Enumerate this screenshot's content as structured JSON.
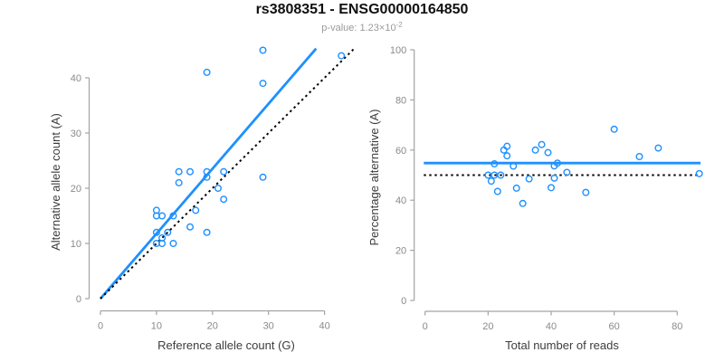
{
  "header": {
    "title": "rs3808351 - ENSG00000164850",
    "pvalue_prefix": "p-value: ",
    "pvalue_mantissa": "1.23×10",
    "pvalue_exponent": "-2"
  },
  "colors": {
    "accent_blue": "#1E90FF",
    "dotted_black": "#000000",
    "axis_gray": "#A3A3A3",
    "tick_label_gray": "#8A8A8A",
    "axis_title_dark": "#3C3C3C",
    "subtitle_gray": "#9A9A9A"
  },
  "chart_data": [
    {
      "type": "scatter",
      "name": "allele-counts-scatter",
      "xlabel": "Reference allele count (G)",
      "ylabel": "Alternative allele count (A)",
      "xlim": [
        0,
        45.5
      ],
      "ylim": [
        0,
        45.5
      ],
      "xticks": [
        0,
        10,
        20,
        30,
        40
      ],
      "yticks": [
        0,
        10,
        20,
        30,
        40
      ],
      "grid": false,
      "legend": "none",
      "points": [
        [
          10,
          16
        ],
        [
          10,
          15
        ],
        [
          11,
          15
        ],
        [
          13,
          15
        ],
        [
          10,
          12
        ],
        [
          14,
          21
        ],
        [
          14,
          23
        ],
        [
          16,
          23
        ],
        [
          19,
          23
        ],
        [
          19,
          22
        ],
        [
          22,
          23
        ],
        [
          10,
          10
        ],
        [
          11,
          11
        ],
        [
          12,
          12
        ],
        [
          11,
          10
        ],
        [
          21,
          20
        ],
        [
          17,
          16
        ],
        [
          13,
          10
        ],
        [
          16,
          13
        ],
        [
          22,
          18
        ],
        [
          19,
          12
        ],
        [
          29,
          22
        ],
        [
          19,
          41
        ],
        [
          29,
          39
        ],
        [
          29,
          45
        ],
        [
          43,
          44
        ]
      ],
      "lines": [
        {
          "name": "regression",
          "style": "solid",
          "color": "#1E90FF",
          "x1": 0,
          "y1": 0,
          "x2": 38.5,
          "y2": 45.3
        },
        {
          "name": "identity",
          "style": "dotted",
          "color": "#000000",
          "x1": 0,
          "y1": 0,
          "x2": 45.4,
          "y2": 45.4
        }
      ]
    },
    {
      "type": "scatter",
      "name": "percentage-scatter",
      "xlabel": "Total number of reads",
      "ylabel": "Percentage alternative (A)",
      "xlim": [
        0,
        88
      ],
      "ylim": [
        0,
        100
      ],
      "xticks": [
        0,
        20,
        40,
        60,
        80
      ],
      "yticks": [
        0,
        20,
        40,
        60,
        80,
        100
      ],
      "grid": false,
      "legend": "none",
      "points": [
        [
          26,
          61.5
        ],
        [
          25,
          60.0
        ],
        [
          26,
          57.7
        ],
        [
          28,
          53.6
        ],
        [
          22,
          54.5
        ],
        [
          35,
          60.0
        ],
        [
          37,
          62.2
        ],
        [
          39,
          59.0
        ],
        [
          42,
          54.8
        ],
        [
          41,
          53.7
        ],
        [
          45,
          51.1
        ],
        [
          20,
          50.0
        ],
        [
          22,
          50.0
        ],
        [
          24,
          50.0
        ],
        [
          21,
          47.6
        ],
        [
          41,
          48.8
        ],
        [
          33,
          48.5
        ],
        [
          23,
          43.5
        ],
        [
          29,
          44.8
        ],
        [
          40,
          45.0
        ],
        [
          31,
          38.7
        ],
        [
          51,
          43.1
        ],
        [
          60,
          68.3
        ],
        [
          68,
          57.4
        ],
        [
          74,
          60.8
        ],
        [
          87,
          50.6
        ]
      ],
      "lines": [
        {
          "name": "fitted-percentage",
          "style": "solid",
          "color": "#1E90FF",
          "x1": -0.4,
          "y1": 54.8,
          "x2": 87.4,
          "y2": 54.8
        },
        {
          "name": "fifty-percent-null",
          "style": "dotted",
          "color": "#000000",
          "x1": -0.4,
          "y1": 50,
          "x2": 87.4,
          "y2": 50
        }
      ]
    }
  ]
}
